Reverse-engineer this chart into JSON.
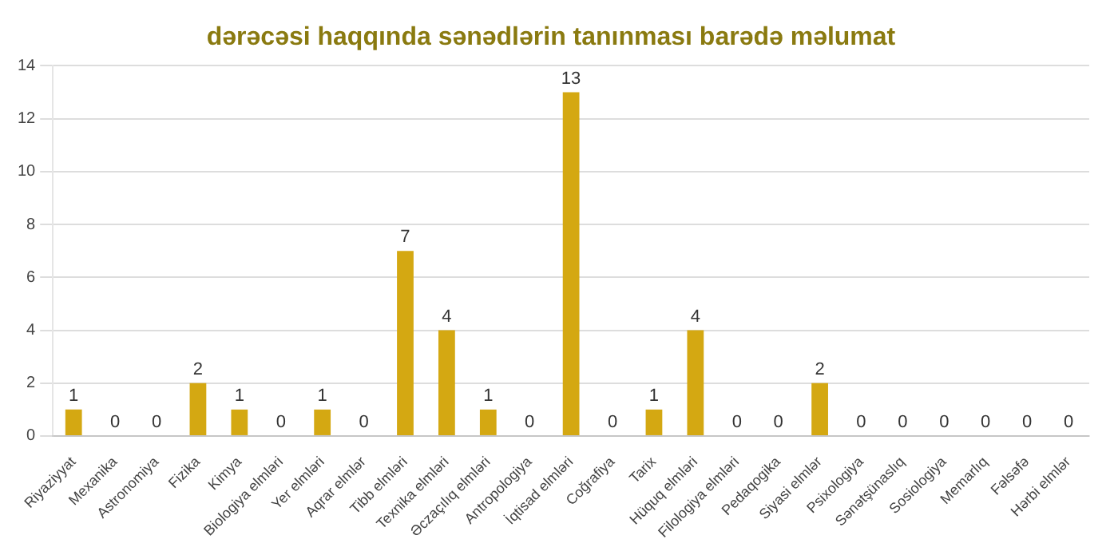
{
  "chart_data": {
    "type": "bar",
    "title": "dərəcəsi haqqında sənədlərin tanınması barədə məlumat",
    "categories": [
      "Riyaziyyat",
      "Mexanika",
      "Astronomiya",
      "Fizika",
      "Kimya",
      "Biologiya elmləri",
      "Yer elmləri",
      "Aqrar elmlər",
      "Tibb elmləri",
      "Texnika elmləri",
      "Əczaçılıq elmləri",
      "Antropologiya",
      "İqtisad elmləri",
      "Coğrafiya",
      "Tarix",
      "Hüquq elmləri",
      "Filologiya elmləri",
      "Pedaqogika",
      "Siyasi elmlər",
      "Psixologiya",
      "Sənətşünaslıq",
      "Sosiologiya",
      "Memarlıq",
      "Fəlsəfə",
      "Hərbi elmlər"
    ],
    "values": [
      1,
      0,
      0,
      2,
      1,
      0,
      1,
      0,
      7,
      4,
      1,
      0,
      13,
      0,
      1,
      4,
      0,
      0,
      2,
      0,
      0,
      0,
      0,
      0,
      0
    ],
    "color": "#d4a812",
    "ylim": [
      0,
      14
    ],
    "yticks": [
      0,
      2,
      4,
      6,
      8,
      10,
      12,
      14
    ],
    "grid": "y",
    "data_labels": true
  }
}
